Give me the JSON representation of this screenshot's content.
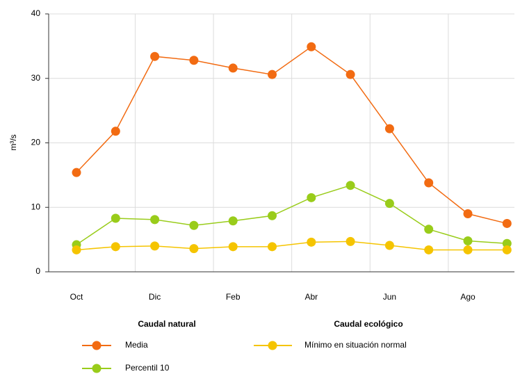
{
  "chart_data": {
    "type": "line",
    "y_label": "m³/s",
    "categories": [
      "Oct",
      null,
      "Dic",
      null,
      "Feb",
      null,
      "Abr",
      null,
      "Jun",
      null,
      "Ago",
      null
    ],
    "ylim": [
      0,
      40
    ],
    "yticks": [
      0,
      10,
      20,
      30,
      40
    ],
    "grid": true,
    "groups": [
      {
        "title": "Caudal natural",
        "series": [
          {
            "name": "Media",
            "color": "#f26b12",
            "values": [
              15.4,
              21.8,
              33.4,
              32.8,
              31.6,
              30.6,
              34.9,
              30.6,
              22.2,
              13.8,
              9.0,
              7.5
            ]
          },
          {
            "name": "Percentil 10",
            "color": "#99cc1a",
            "values": [
              4.2,
              8.3,
              8.1,
              7.2,
              7.9,
              8.7,
              11.5,
              13.4,
              10.6,
              6.6,
              4.8,
              4.4
            ]
          }
        ]
      },
      {
        "title": "Caudal ecológico",
        "series": [
          {
            "name": "Mínimo en situación normal",
            "color": "#f5c400",
            "values": [
              3.4,
              3.9,
              4.0,
              3.6,
              3.9,
              3.9,
              4.6,
              4.7,
              4.1,
              3.4,
              3.4,
              3.4
            ]
          }
        ]
      }
    ]
  }
}
